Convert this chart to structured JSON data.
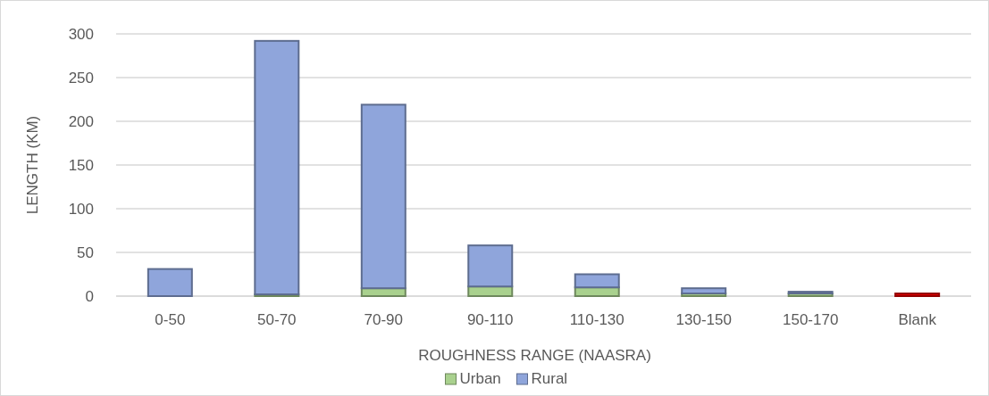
{
  "chart_data": {
    "type": "bar",
    "stacked": true,
    "xlabel": "ROUGHNESS RANGE (NAASRA)",
    "ylabel": "LENGTH (KM)",
    "categories": [
      "0-50",
      "50-70",
      "70-90",
      "90-110",
      "110-130",
      "130-150",
      "150-170",
      "Blank"
    ],
    "series": [
      {
        "name": "Urban",
        "color": "#a9d18e",
        "values": [
          0,
          2,
          9,
          11,
          10,
          3,
          3,
          0
        ]
      },
      {
        "name": "Rural",
        "color": "#8fa5db",
        "colors": [
          "#8fa5db",
          "#8fa5db",
          "#8fa5db",
          "#8fa5db",
          "#8fa5db",
          "#8fa5db",
          "#8fa5db",
          "#e00000"
        ],
        "values": [
          31,
          290,
          210,
          47,
          15,
          6,
          2,
          3
        ]
      }
    ],
    "ylim": [
      0,
      300
    ],
    "yticks": [
      0,
      50,
      100,
      150,
      200,
      250,
      300
    ],
    "grid": "y",
    "legend": "bottom"
  }
}
